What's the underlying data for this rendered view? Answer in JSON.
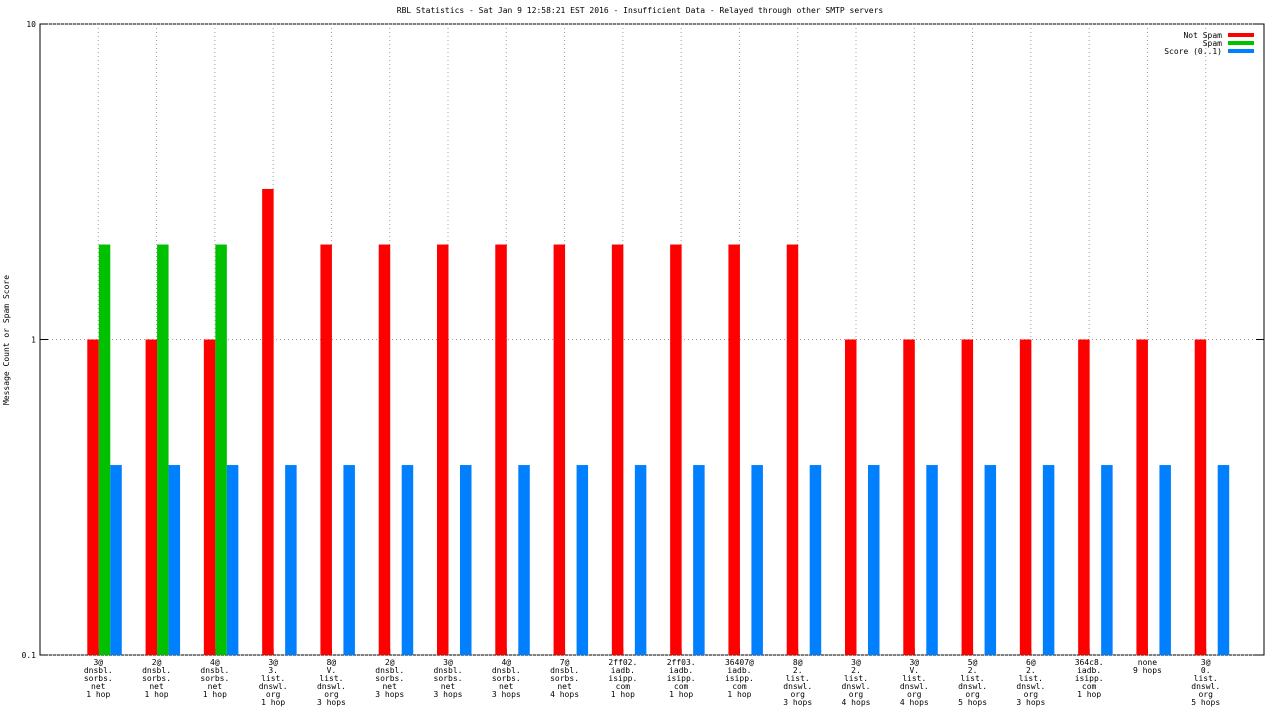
{
  "chart_data": {
    "type": "bar",
    "title": "RBL Statistics - Sat Jan  9 12:58:21 EST 2016 - Insufficient Data - Relayed through other SMTP servers",
    "y_label": "Message Count or Spam Score",
    "log_y": true,
    "grid": true,
    "legend": "upper right",
    "ylim": [
      0.1,
      10
    ],
    "yticks": [
      0.1,
      1,
      10
    ],
    "categories": [
      [
        "3@",
        "dnsbl.",
        "sorbs.",
        "net",
        "1 hop"
      ],
      [
        "2@",
        "dnsbl.",
        "sorbs.",
        "net",
        "1 hop"
      ],
      [
        "4@",
        "dnsbl.",
        "sorbs.",
        "net",
        "1 hop"
      ],
      [
        "3@",
        "3.",
        "list.",
        "dnswl.",
        "org",
        "1 hop"
      ],
      [
        "8@",
        "V.",
        "list.",
        "dnswl.",
        "org",
        "3 hops"
      ],
      [
        "2@",
        "dnsbl.",
        "sorbs.",
        "net",
        "3 hops"
      ],
      [
        "3@",
        "dnsbl.",
        "sorbs.",
        "net",
        "3 hops"
      ],
      [
        "4@",
        "dnsbl.",
        "sorbs.",
        "net",
        "3 hops"
      ],
      [
        "7@",
        "dnsbl.",
        "sorbs.",
        "net",
        "4 hops"
      ],
      [
        "2ff02.",
        "iadb.",
        "isipp.",
        "com",
        "1 hop"
      ],
      [
        "2ff03.",
        "iadb.",
        "isipp.",
        "com",
        "1 hop"
      ],
      [
        "36407@",
        "iadb.",
        "isipp.",
        "com",
        "1 hop"
      ],
      [
        "8@",
        "2.",
        "list.",
        "dnswl.",
        "org",
        "3 hops"
      ],
      [
        "3@",
        "2.",
        "list.",
        "dnswl.",
        "org",
        "4 hops"
      ],
      [
        "3@",
        "V.",
        "list.",
        "dnswl.",
        "org",
        "4 hops"
      ],
      [
        "5@",
        "2.",
        "list.",
        "dnswl.",
        "org",
        "5 hops"
      ],
      [
        "6@",
        "2.",
        "list.",
        "dnswl.",
        "org",
        "3 hops"
      ],
      [
        "364c8.",
        "iadb.",
        "isipp.",
        "com",
        "1 hop"
      ],
      [
        "none",
        "9 hops"
      ],
      [
        "3@",
        "0.",
        "list.",
        "dnswl.",
        "org",
        "5 hops"
      ]
    ],
    "series": [
      {
        "name": "Not Spam",
        "color": "#ff0000",
        "values": [
          1,
          1,
          1,
          3,
          2,
          2,
          2,
          2,
          2,
          2,
          2,
          2,
          2,
          1,
          1,
          1,
          1,
          1,
          1,
          1
        ]
      },
      {
        "name": "Spam",
        "color": "#00c000",
        "values": [
          2,
          2,
          2,
          null,
          null,
          null,
          null,
          null,
          null,
          null,
          null,
          null,
          null,
          null,
          null,
          null,
          null,
          null,
          null,
          null
        ]
      },
      {
        "name": "Score (0..1)",
        "color": "#0080ff",
        "values": [
          0.4,
          0.4,
          0.4,
          0.4,
          0.4,
          0.4,
          0.4,
          0.4,
          0.4,
          0.4,
          0.4,
          0.4,
          0.4,
          0.4,
          0.4,
          0.4,
          0.4,
          0.4,
          0.4,
          0.4
        ]
      }
    ]
  }
}
